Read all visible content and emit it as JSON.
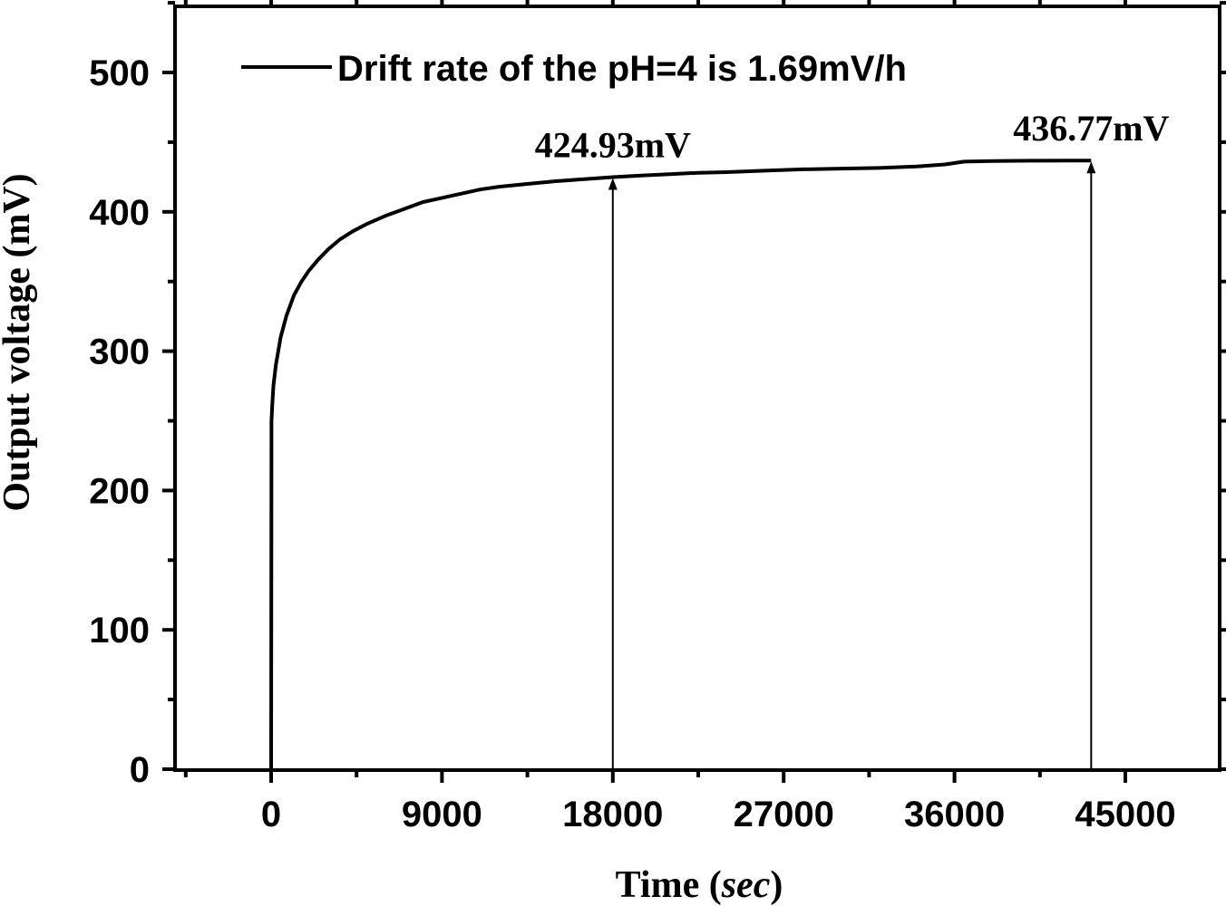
{
  "chart_data": {
    "type": "line",
    "xlabel_main": "Time (",
    "xlabel_italic": "sec",
    "xlabel_end": ")",
    "ylabel": "Output voltage (mV)",
    "xlim": [
      -5000,
      48000
    ],
    "ylim": [
      0,
      550
    ],
    "x_ticks": [
      0,
      9000,
      18000,
      27000,
      36000,
      45000
    ],
    "x_tick_labels": [
      "0",
      "9000",
      "18000",
      "27000",
      "36000",
      "45000"
    ],
    "y_ticks": [
      0,
      100,
      200,
      300,
      400,
      500
    ],
    "y_tick_labels": [
      "0",
      "100",
      "200",
      "300",
      "400",
      "500"
    ],
    "grid": false,
    "legend_position": "top-left",
    "series": [
      {
        "name": "Drift rate of the pH=4 is 1.69mV/h",
        "color": "#000000",
        "x": [
          0,
          20,
          60,
          120,
          250,
          500,
          800,
          1200,
          1600,
          2000,
          2500,
          3000,
          3600,
          4300,
          5000,
          6000,
          7000,
          8000,
          9000,
          10000,
          11000,
          12000,
          13500,
          15000,
          16500,
          18000,
          19500,
          21000,
          22500,
          24000,
          26000,
          28000,
          30000,
          32000,
          34000,
          35500,
          36500,
          38000,
          40000,
          42000,
          43200
        ],
        "y": [
          0,
          250,
          262,
          275,
          290,
          310,
          325,
          340,
          350,
          358,
          366,
          373,
          380,
          386,
          391,
          397,
          402,
          407,
          410,
          413,
          416,
          418,
          420,
          422,
          423.5,
          424.93,
          426,
          427,
          428,
          428.5,
          429.5,
          430.5,
          431,
          431.5,
          432.5,
          434,
          436,
          436.5,
          436.7,
          436.77,
          436.77
        ]
      }
    ],
    "annotations": [
      {
        "text": "424.93mV",
        "x": 18000,
        "y": 424.93
      },
      {
        "text": "436.77mV",
        "x": 43200,
        "y": 436.77
      }
    ]
  }
}
